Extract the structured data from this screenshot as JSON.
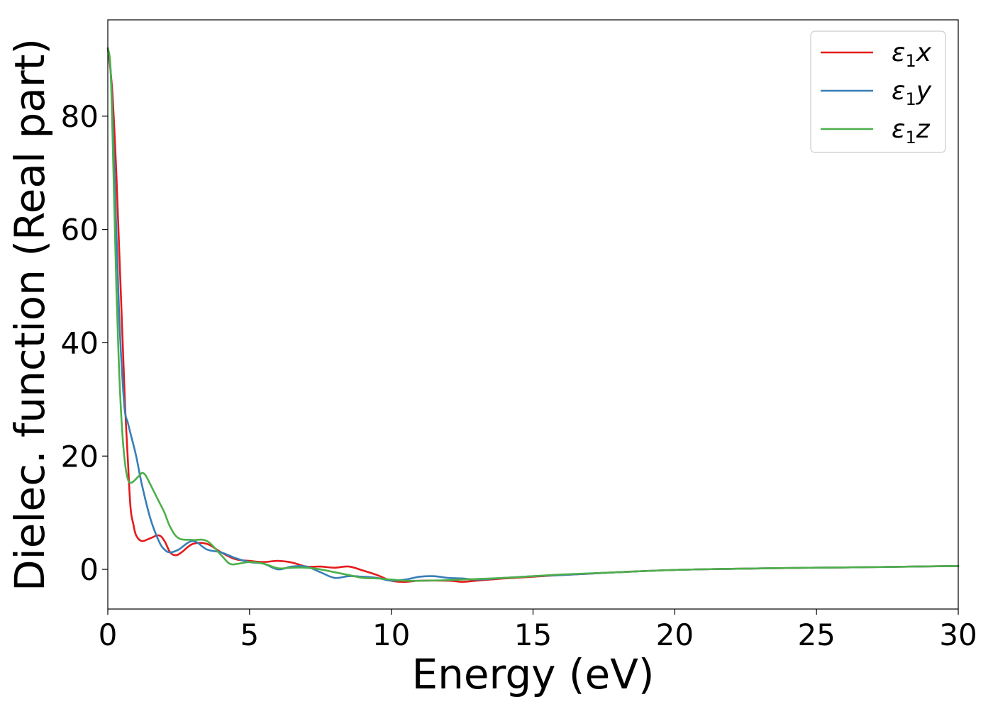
{
  "chart_data": {
    "type": "line",
    "title": "",
    "xlabel": "Energy (eV)",
    "ylabel": "Dielec. function (Real part)",
    "xlim": [
      0,
      30
    ],
    "ylim": [
      -7,
      97
    ],
    "xticks": [
      0,
      5,
      10,
      15,
      20,
      25,
      30
    ],
    "xtick_labels": [
      "0",
      "5",
      "10",
      "15",
      "20",
      "25",
      "30"
    ],
    "yticks": [
      0,
      20,
      40,
      60,
      80
    ],
    "ytick_labels": [
      "0",
      "20",
      "40",
      "60",
      "80"
    ],
    "grid": false,
    "legend_position": "top-right",
    "series": [
      {
        "name": "ε1x",
        "legend": {
          "symbol": "ε",
          "sub": "1",
          "var": "x"
        },
        "color": "#e41a1c",
        "x": [
          0,
          0.15,
          0.3,
          0.45,
          0.6,
          0.7,
          0.8,
          0.9,
          1.0,
          1.2,
          1.5,
          1.8,
          2.0,
          2.2,
          2.4,
          2.6,
          3.0,
          3.5,
          4.0,
          4.5,
          5.0,
          5.5,
          6.0,
          6.5,
          7.0,
          7.5,
          8.0,
          8.5,
          9.0,
          9.5,
          10.0,
          10.5,
          11.0,
          12.0,
          12.5,
          13.0,
          14.0,
          15.0,
          16.0,
          18.0,
          20.0,
          22.0,
          25.0,
          27.0,
          30.0
        ],
        "y": [
          92,
          85,
          70,
          50,
          30,
          20,
          11,
          8,
          6,
          5,
          5.5,
          6,
          5,
          3,
          2.5,
          3,
          4.5,
          4.5,
          3,
          1.8,
          1.5,
          1.3,
          1.5,
          1.2,
          0.5,
          0.5,
          0.3,
          0.5,
          -0.2,
          -1,
          -2,
          -2.2,
          -2,
          -2,
          -2.2,
          -2,
          -1.6,
          -1.3,
          -1,
          -0.5,
          -0.1,
          0.1,
          0.3,
          0.4,
          0.6
        ]
      },
      {
        "name": "ε1y",
        "legend": {
          "symbol": "ε",
          "sub": "1",
          "var": "y"
        },
        "color": "#377eb8",
        "x": [
          0,
          0.1,
          0.2,
          0.3,
          0.4,
          0.5,
          0.6,
          0.7,
          0.8,
          1.0,
          1.2,
          1.5,
          1.8,
          2.0,
          2.2,
          2.5,
          3.0,
          3.5,
          4.0,
          4.5,
          5.0,
          5.5,
          6.0,
          6.5,
          7.0,
          7.5,
          8.0,
          8.5,
          9.0,
          9.5,
          10.0,
          10.5,
          11.0,
          11.5,
          12.0,
          12.5,
          13.0,
          14.0,
          15.0,
          16.0,
          18.0,
          20.0,
          22.0,
          25.0,
          27.0,
          30.0
        ],
        "y": [
          92,
          88,
          75,
          60,
          45,
          35,
          28,
          26,
          24,
          20,
          15,
          9,
          5,
          3.5,
          3,
          3.5,
          5,
          3.5,
          3,
          2,
          1.3,
          1,
          0,
          0.5,
          0.5,
          -0.5,
          -1.5,
          -1.2,
          -1.3,
          -1.5,
          -2,
          -1.8,
          -1.3,
          -1.2,
          -1.5,
          -1.6,
          -1.8,
          -1.5,
          -1.2,
          -1,
          -0.5,
          -0.1,
          0.1,
          0.3,
          0.4,
          0.6
        ]
      },
      {
        "name": "ε1z",
        "legend": {
          "symbol": "ε",
          "sub": "1",
          "var": "z"
        },
        "color": "#4daf4a",
        "x": [
          0,
          0.1,
          0.2,
          0.3,
          0.4,
          0.5,
          0.6,
          0.7,
          0.8,
          0.9,
          1.0,
          1.1,
          1.2,
          1.3,
          1.4,
          1.6,
          1.8,
          2.0,
          2.2,
          2.5,
          3.0,
          3.5,
          4.0,
          4.3,
          4.6,
          5.0,
          5.5,
          6.0,
          6.5,
          7.0,
          7.5,
          8.0,
          8.5,
          9.0,
          9.5,
          10.0,
          10.5,
          11.0,
          12.0,
          13.0,
          14.0,
          15.0,
          16.0,
          18.0,
          20.0,
          22.0,
          25.0,
          27.0,
          30.0
        ],
        "y": [
          92,
          88,
          70,
          50,
          35,
          25,
          19,
          16,
          15.3,
          15.5,
          16,
          16.5,
          17,
          16.8,
          16,
          14,
          12,
          10,
          7.5,
          5.5,
          5.2,
          5,
          2.5,
          1,
          1,
          1.3,
          1,
          0.2,
          0.3,
          0.3,
          0,
          -0.5,
          -1,
          -1.5,
          -1.6,
          -1.8,
          -2,
          -2,
          -1.9,
          -1.7,
          -1.5,
          -1.2,
          -0.9,
          -0.5,
          -0.1,
          0.1,
          0.3,
          0.4,
          0.6
        ]
      }
    ]
  }
}
